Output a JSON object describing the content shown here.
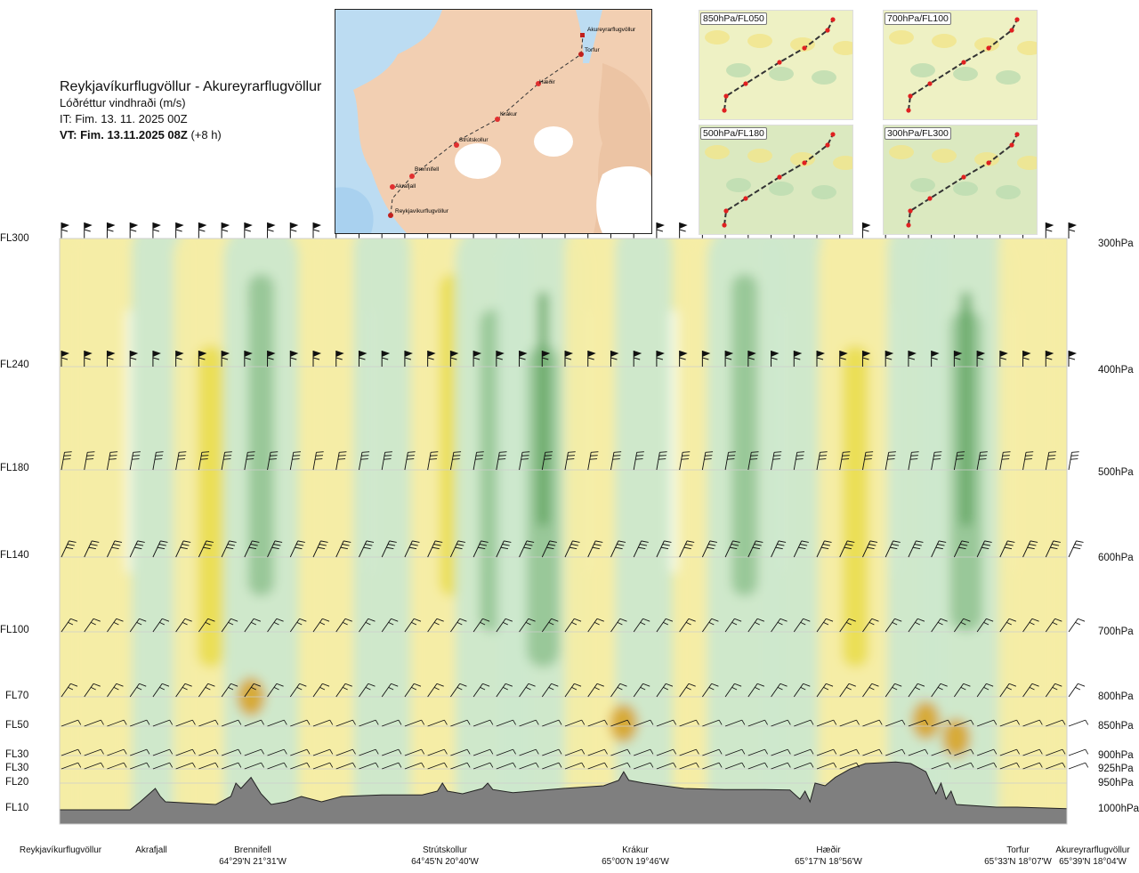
{
  "header": {
    "title": "Reykjavíkurflugvöllur - Akureyrarflugvöllur",
    "subtitle": "Lóðréttur vindhraði (m/s)",
    "it": "IT: Fim. 13. 11. 2025 00Z",
    "vt": "VT: Fim. 13.11.2025 08Z",
    "vt_rel": "(+8 h)"
  },
  "inset_map": {
    "points": [
      "Akureyrarflugvöllur",
      "Torfur",
      "Hæðir",
      "Krákur",
      "Strútskollur",
      "Brennifell",
      "Akrafjall",
      "Reykjavíkurflugvöllur"
    ]
  },
  "mini_maps": [
    "850hPa/FL050",
    "700hPa/FL100",
    "500hPa/FL180",
    "300hPa/FL300"
  ],
  "colors": {
    "strong_up": "#4e9a4e",
    "up": "#8cc08c",
    "weak_up": "#cde8cd",
    "near_zero": "#f7fbea",
    "weak_down": "#f5eda5",
    "down": "#e8dc45",
    "strong_down": "#d8a020",
    "terrain": "#7f7f7f"
  },
  "chart_data": {
    "type": "heatmap",
    "title": "Reykjavíkurflugvöllur - Akureyrarflugvöllur",
    "subtitle": "Lóðréttur vindhraði (m/s)",
    "y_levels_fl": [
      "FL300",
      "FL240",
      "FL180",
      "FL140",
      "FL100",
      "FL70",
      "FL50",
      "FL30",
      "FL30",
      "FL20",
      "FL10"
    ],
    "y_levels_hpa": [
      "300hPa",
      "400hPa",
      "500hPa",
      "600hPa",
      "700hPa",
      "800hPa",
      "850hPa",
      "900hPa",
      "925hPa",
      "950hPa",
      "1000hPa"
    ],
    "hpa_values": [
      300,
      400,
      500,
      600,
      700,
      800,
      850,
      900,
      925,
      950,
      1000
    ],
    "x_locations": [
      {
        "name": "Reykjavíkurflugvöllur",
        "coord": ""
      },
      {
        "name": "Akrafjall",
        "coord": ""
      },
      {
        "name": "Brennifell",
        "coord": "64°29'N 21°31'W"
      },
      {
        "name": "Strútskollur",
        "coord": "64°45'N 20°40'W"
      },
      {
        "name": "Krákur",
        "coord": "65°00'N 19°46'W"
      },
      {
        "name": "Hæðir",
        "coord": "65°17'N 18°56'W"
      },
      {
        "name": "Torfur",
        "coord": "65°33'N 18°07'W"
      },
      {
        "name": "Akureyrarflugvöllur",
        "coord": "65°39'N 18°04'W"
      }
    ],
    "x_fraction": [
      0.0,
      0.09,
      0.19,
      0.38,
      0.56,
      0.74,
      0.95,
      1.0
    ],
    "vertical_velocity_columns": [
      {
        "x": 0.04,
        "sign": -1,
        "strength": 1
      },
      {
        "x": 0.1,
        "sign": 1,
        "strength": 1
      },
      {
        "x": 0.15,
        "sign": -1,
        "strength": 2
      },
      {
        "x": 0.2,
        "sign": 1,
        "strength": 2
      },
      {
        "x": 0.28,
        "sign": -1,
        "strength": 1
      },
      {
        "x": 0.32,
        "sign": 1,
        "strength": 1
      },
      {
        "x": 0.39,
        "sign": -1,
        "strength": 2
      },
      {
        "x": 0.43,
        "sign": 1,
        "strength": 2
      },
      {
        "x": 0.48,
        "sign": 1,
        "strength": 3
      },
      {
        "x": 0.53,
        "sign": -1,
        "strength": 1
      },
      {
        "x": 0.58,
        "sign": 1,
        "strength": 1
      },
      {
        "x": 0.65,
        "sign": -1,
        "strength": 1
      },
      {
        "x": 0.68,
        "sign": 1,
        "strength": 2
      },
      {
        "x": 0.73,
        "sign": 1,
        "strength": 1
      },
      {
        "x": 0.79,
        "sign": -1,
        "strength": 2
      },
      {
        "x": 0.85,
        "sign": 1,
        "strength": 1
      },
      {
        "x": 0.9,
        "sign": 1,
        "strength": 3
      },
      {
        "x": 0.96,
        "sign": -1,
        "strength": 1
      }
    ],
    "terrain_profile_hpa": [
      [
        0.0,
        1000
      ],
      [
        0.07,
        1000
      ],
      [
        0.08,
        985
      ],
      [
        0.095,
        960
      ],
      [
        0.1,
        975
      ],
      [
        0.105,
        985
      ],
      [
        0.155,
        990
      ],
      [
        0.17,
        975
      ],
      [
        0.175,
        950
      ],
      [
        0.18,
        960
      ],
      [
        0.19,
        940
      ],
      [
        0.2,
        970
      ],
      [
        0.21,
        990
      ],
      [
        0.225,
        985
      ],
      [
        0.24,
        975
      ],
      [
        0.26,
        985
      ],
      [
        0.28,
        975
      ],
      [
        0.32,
        972
      ],
      [
        0.36,
        972
      ],
      [
        0.375,
        965
      ],
      [
        0.38,
        950
      ],
      [
        0.385,
        965
      ],
      [
        0.4,
        970
      ],
      [
        0.42,
        960
      ],
      [
        0.425,
        950
      ],
      [
        0.43,
        962
      ],
      [
        0.45,
        968
      ],
      [
        0.5,
        960
      ],
      [
        0.54,
        955
      ],
      [
        0.555,
        945
      ],
      [
        0.56,
        930
      ],
      [
        0.565,
        945
      ],
      [
        0.58,
        950
      ],
      [
        0.6,
        955
      ],
      [
        0.62,
        960
      ],
      [
        0.66,
        962
      ],
      [
        0.7,
        962
      ],
      [
        0.725,
        963
      ],
      [
        0.735,
        980
      ],
      [
        0.74,
        965
      ],
      [
        0.745,
        985
      ],
      [
        0.75,
        950
      ],
      [
        0.76,
        955
      ],
      [
        0.77,
        940
      ],
      [
        0.785,
        925
      ],
      [
        0.8,
        915
      ],
      [
        0.83,
        912
      ],
      [
        0.845,
        915
      ],
      [
        0.86,
        930
      ],
      [
        0.865,
        950
      ],
      [
        0.87,
        970
      ],
      [
        0.875,
        950
      ],
      [
        0.88,
        980
      ],
      [
        0.885,
        965
      ],
      [
        0.89,
        990
      ],
      [
        0.93,
        995
      ],
      [
        0.95,
        995
      ],
      [
        1.0,
        998
      ]
    ],
    "wind_barbs_row_hpa": [
      300,
      400,
      500,
      600,
      700,
      800,
      850,
      900,
      925
    ],
    "legend": "none",
    "grid": true
  }
}
